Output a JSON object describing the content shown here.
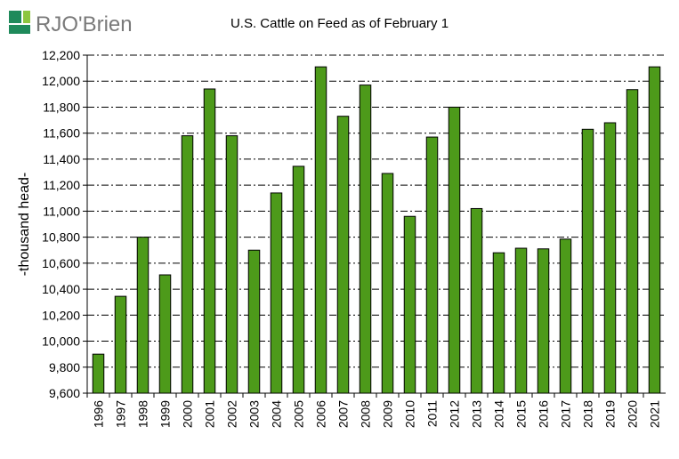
{
  "brand": {
    "logo_text": "RJO'Brien",
    "logo_color": "#1f8a5b",
    "text_color": "#7a7a7a"
  },
  "chart_data": {
    "type": "bar",
    "title": "U.S. Cattle on Feed as of February 1",
    "xlabel": "",
    "ylabel": "-thousand head-",
    "ylim": [
      9600,
      12200
    ],
    "ytick_step": 200,
    "ytick_labels": [
      "9,600",
      "9,800",
      "10,000",
      "10,200",
      "10,400",
      "10,600",
      "10,800",
      "11,000",
      "11,200",
      "11,400",
      "11,600",
      "11,800",
      "12,000",
      "12,200"
    ],
    "grid": "horizontal dash-dot",
    "bar_color": "#4d9a1a",
    "categories": [
      "1996",
      "1997",
      "1998",
      "1999",
      "2000",
      "2001",
      "2002",
      "2003",
      "2004",
      "2005",
      "2006",
      "2007",
      "2008",
      "2009",
      "2010",
      "2011",
      "2012",
      "2013",
      "2014",
      "2015",
      "2016",
      "2017",
      "2018",
      "2019",
      "2020",
      "2021"
    ],
    "values": [
      9900,
      10345,
      10800,
      10510,
      11580,
      11940,
      11580,
      10700,
      11140,
      11345,
      12110,
      11730,
      11970,
      11290,
      10960,
      11570,
      11800,
      11020,
      10680,
      10715,
      10710,
      10785,
      11630,
      11680,
      11935,
      12110
    ]
  }
}
